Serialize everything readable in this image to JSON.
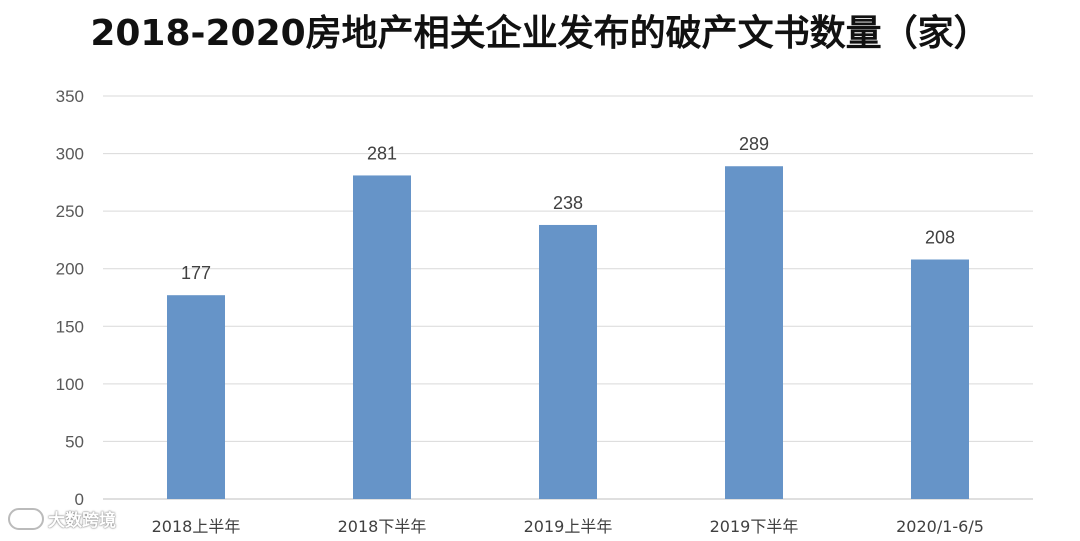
{
  "chart_data": {
    "type": "bar",
    "title": "2018-2020房地产相关企业发布的破产文书数量（家）",
    "categories": [
      "2018上半年",
      "2018下半年",
      "2019上半年",
      "2019下半年",
      "2020/1-6/5"
    ],
    "values": [
      177,
      281,
      238,
      289,
      208
    ],
    "ylim": [
      0,
      350
    ],
    "yticks": [
      0,
      50,
      100,
      150,
      200,
      250,
      300,
      350
    ],
    "xlabel": "",
    "ylabel": "",
    "grid": true,
    "legend": "none",
    "bar_color": "#6694C8"
  },
  "watermark": {
    "text": "大数跨境"
  }
}
